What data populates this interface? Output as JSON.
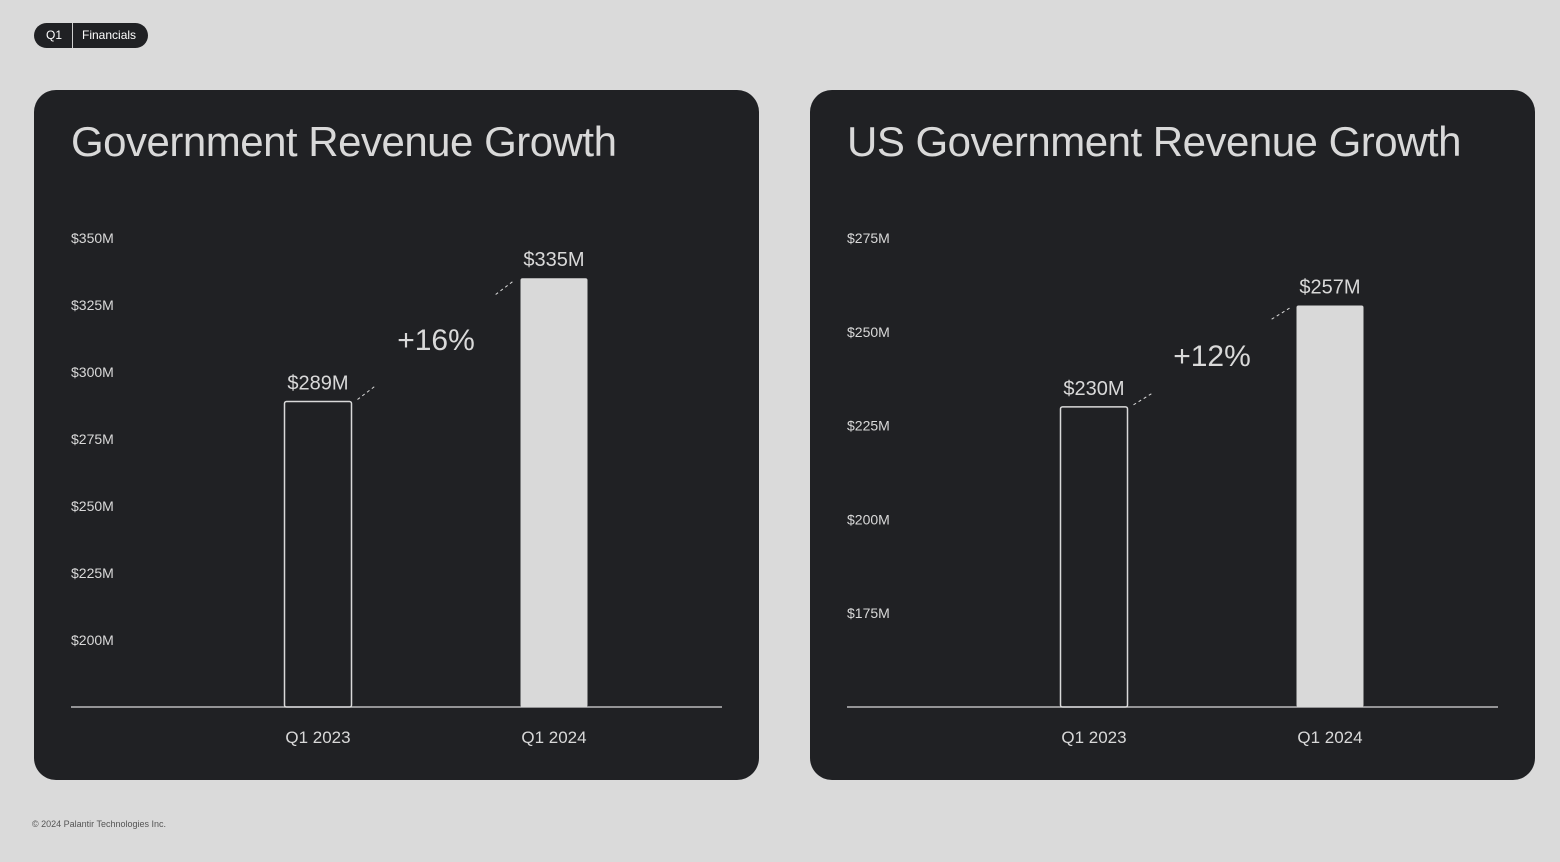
{
  "header": {
    "tag_quarter": "Q1",
    "tag_section": "Financials"
  },
  "footer": {
    "copyright": "© 2024 Palantir Technologies Inc."
  },
  "colors": {
    "page_bg": "#dadada",
    "panel_bg": "#202124",
    "bar_fill": "#d9d9d9",
    "text": "#d9d9d9"
  },
  "chart_data": [
    {
      "type": "bar",
      "title": "Government Revenue Growth",
      "categories": [
        "Q1 2023",
        "Q1 2024"
      ],
      "values": [
        289,
        335
      ],
      "value_labels": [
        "$289M",
        "$335M"
      ],
      "bar_styles": [
        "outline",
        "filled"
      ],
      "growth_label": "+16%",
      "yticks": [
        200,
        225,
        250,
        275,
        300,
        325,
        350
      ],
      "ytick_labels": [
        "$200M",
        "$225M",
        "$250M",
        "$275M",
        "$300M",
        "$325M",
        "$350M"
      ],
      "ylim": [
        175,
        350
      ],
      "xlabel": "",
      "ylabel": "",
      "grid": false
    },
    {
      "type": "bar",
      "title": "US Government Revenue Growth",
      "categories": [
        "Q1 2023",
        "Q1 2024"
      ],
      "values": [
        230,
        257
      ],
      "value_labels": [
        "$230M",
        "$257M"
      ],
      "bar_styles": [
        "outline",
        "filled"
      ],
      "growth_label": "+12%",
      "yticks": [
        175,
        200,
        225,
        250,
        275
      ],
      "ytick_labels": [
        "$175M",
        "$200M",
        "$225M",
        "$250M",
        "$275M"
      ],
      "ylim": [
        150,
        275
      ],
      "xlabel": "",
      "ylabel": "",
      "grid": false
    }
  ]
}
